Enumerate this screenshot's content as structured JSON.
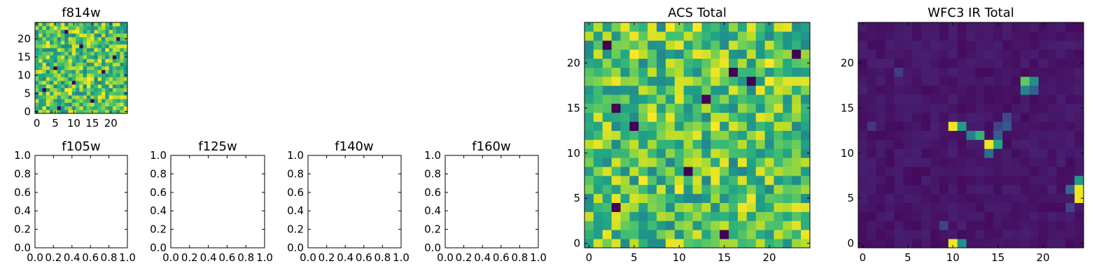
{
  "figure": {
    "background": "#ffffff",
    "colormap": "viridis"
  },
  "chart_data": [
    {
      "id": "f814w",
      "type": "heatmap",
      "title": "f814w",
      "grid_size": [
        25,
        25
      ],
      "xlim": [
        -0.5,
        24.5
      ],
      "ylim": [
        -0.5,
        24.5
      ],
      "xticks": [
        0,
        5,
        10,
        15,
        20
      ],
      "yticks": [
        0,
        5,
        10,
        15,
        20
      ],
      "xtick_labels": [
        "0",
        "5",
        "10",
        "15",
        "20"
      ],
      "ytick_labels": [
        "0",
        "5",
        "10",
        "15",
        "20"
      ],
      "pattern": "noise",
      "seed": 7,
      "base": 0.72,
      "spread": 0.26,
      "dark_pixels": [
        [
          2,
          6
        ],
        [
          6,
          1
        ],
        [
          8,
          22
        ],
        [
          12,
          18
        ],
        [
          15,
          3
        ],
        [
          18,
          11
        ],
        [
          21,
          15
        ],
        [
          22,
          20
        ],
        [
          5,
          12
        ],
        [
          10,
          8
        ]
      ],
      "hot_pixels": [
        [
          8,
          6
        ],
        [
          9,
          6
        ],
        [
          9,
          5
        ],
        [
          14,
          9
        ],
        [
          17,
          14
        ],
        [
          3,
          19
        ],
        [
          20,
          4
        ],
        [
          11,
          22
        ]
      ]
    },
    {
      "id": "f105w",
      "type": "empty",
      "title": "f105w",
      "xlim": [
        0,
        1
      ],
      "ylim": [
        0,
        1
      ],
      "xticks": [
        0,
        0.2,
        0.4,
        0.6,
        0.8,
        1.0
      ],
      "yticks": [
        0,
        0.2,
        0.4,
        0.6,
        0.8,
        1.0
      ],
      "xtick_labels": [
        "0.0",
        "0.2",
        "0.4",
        "0.6",
        "0.8",
        "1.0"
      ],
      "ytick_labels": [
        "0.0",
        "0.2",
        "0.4",
        "0.6",
        "0.8",
        "1.0"
      ]
    },
    {
      "id": "f125w",
      "type": "empty",
      "title": "f125w",
      "xlim": [
        0,
        1
      ],
      "ylim": [
        0,
        1
      ],
      "xticks": [
        0,
        0.2,
        0.4,
        0.6,
        0.8,
        1.0
      ],
      "yticks": [
        0,
        0.2,
        0.4,
        0.6,
        0.8,
        1.0
      ],
      "xtick_labels": [
        "0.0",
        "0.2",
        "0.4",
        "0.6",
        "0.8",
        "1.0"
      ],
      "ytick_labels": [
        "0.0",
        "0.2",
        "0.4",
        "0.6",
        "0.8",
        "1.0"
      ]
    },
    {
      "id": "f140w",
      "type": "empty",
      "title": "f140w",
      "xlim": [
        0,
        1
      ],
      "ylim": [
        0,
        1
      ],
      "xticks": [
        0,
        0.2,
        0.4,
        0.6,
        0.8,
        1.0
      ],
      "yticks": [
        0,
        0.2,
        0.4,
        0.6,
        0.8,
        1.0
      ],
      "xtick_labels": [
        "0.0",
        "0.2",
        "0.4",
        "0.6",
        "0.8",
        "1.0"
      ],
      "ytick_labels": [
        "0.0",
        "0.2",
        "0.4",
        "0.6",
        "0.8",
        "1.0"
      ]
    },
    {
      "id": "f160w",
      "type": "empty",
      "title": "f160w",
      "xlim": [
        0,
        1
      ],
      "ylim": [
        0,
        1
      ],
      "xticks": [
        0,
        0.2,
        0.4,
        0.6,
        0.8,
        1.0
      ],
      "yticks": [
        0,
        0.2,
        0.4,
        0.6,
        0.8,
        1.0
      ],
      "xtick_labels": [
        "0.0",
        "0.2",
        "0.4",
        "0.6",
        "0.8",
        "1.0"
      ],
      "ytick_labels": [
        "0.0",
        "0.2",
        "0.4",
        "0.6",
        "0.8",
        "1.0"
      ]
    },
    {
      "id": "acs-total",
      "type": "heatmap",
      "title": "ACS Total",
      "grid_size": [
        25,
        25
      ],
      "xlim": [
        -0.5,
        24.5
      ],
      "ylim": [
        -0.5,
        24.5
      ],
      "xticks": [
        0,
        5,
        10,
        15,
        20
      ],
      "yticks": [
        0,
        5,
        10,
        15,
        20
      ],
      "xtick_labels": [
        "0",
        "5",
        "10",
        "15",
        "20"
      ],
      "ytick_labels": [
        "0",
        "5",
        "10",
        "15",
        "20"
      ],
      "pattern": "noise",
      "seed": 7,
      "base": 0.72,
      "spread": 0.26,
      "dark_pixels": [
        [
          2,
          22
        ],
        [
          3,
          15
        ],
        [
          3,
          4
        ],
        [
          13,
          16
        ],
        [
          16,
          19
        ],
        [
          15,
          1
        ],
        [
          23,
          21
        ],
        [
          11,
          8
        ],
        [
          5,
          13
        ],
        [
          18,
          18
        ]
      ],
      "hot_pixels": [
        [
          9,
          24
        ],
        [
          12,
          24
        ],
        [
          20,
          20
        ],
        [
          20,
          18
        ],
        [
          5,
          21
        ],
        [
          7,
          14
        ],
        [
          10,
          6
        ],
        [
          6,
          7
        ],
        [
          14,
          13
        ]
      ]
    },
    {
      "id": "wfc3-ir-total",
      "type": "heatmap",
      "title": "WFC3 IR Total",
      "grid_size": [
        25,
        25
      ],
      "xlim": [
        -0.5,
        24.5
      ],
      "ylim": [
        -0.5,
        24.5
      ],
      "xticks": [
        0,
        5,
        10,
        15,
        20
      ],
      "yticks": [
        0,
        5,
        10,
        15,
        20
      ],
      "xtick_labels": [
        "0",
        "5",
        "10",
        "15",
        "20"
      ],
      "ytick_labels": [
        "0",
        "5",
        "10",
        "15",
        "20"
      ],
      "pattern": "sparse",
      "seed": 11,
      "base": 0.06,
      "spread": 0.06,
      "sources": [
        [
          10,
          13,
          0.98
        ],
        [
          11,
          13,
          0.55
        ],
        [
          12,
          12,
          0.45
        ],
        [
          13,
          12,
          0.65
        ],
        [
          14,
          11,
          0.98
        ],
        [
          15,
          11,
          0.6
        ],
        [
          14,
          10,
          0.35
        ],
        [
          15,
          12,
          0.3
        ],
        [
          16,
          13,
          0.28
        ],
        [
          16,
          14,
          0.22
        ],
        [
          15,
          13,
          0.2
        ],
        [
          18,
          17,
          0.45
        ],
        [
          18,
          18,
          0.75
        ],
        [
          19,
          18,
          0.5
        ],
        [
          19,
          17,
          0.3
        ],
        [
          24,
          7,
          0.55
        ],
        [
          24,
          6,
          0.98
        ],
        [
          24,
          5,
          0.98
        ],
        [
          23,
          6,
          0.35
        ],
        [
          10,
          0,
          0.98
        ],
        [
          11,
          0,
          0.5
        ],
        [
          9,
          2,
          0.2
        ],
        [
          23,
          4,
          0.2
        ],
        [
          4,
          19,
          0.18
        ],
        [
          1,
          13,
          0.16
        ]
      ]
    }
  ]
}
